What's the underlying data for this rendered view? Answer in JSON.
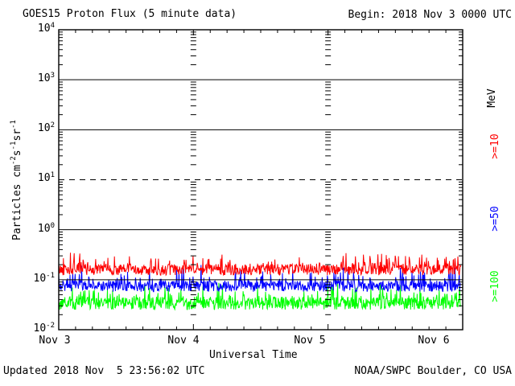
{
  "header": {
    "title": "GOES15 Proton Flux (5 minute data)",
    "begin_label": "Begin: 2018 Nov 3 0000 UTC"
  },
  "footer": {
    "updated": "Updated 2018 Nov  5 23:56:02 UTC",
    "source": "NOAA/SWPC Boulder, CO USA"
  },
  "axes": {
    "x_label": "Universal Time",
    "y_label_parts": [
      {
        "t": "Particles cm",
        "s": "-2"
      },
      {
        "t": "s",
        "s": "-1"
      },
      {
        "t": "sr",
        "s": "-1"
      }
    ],
    "y_ticks": [
      {
        "base": "10",
        "exp": "4"
      },
      {
        "base": "10",
        "exp": "3"
      },
      {
        "base": "10",
        "exp": "2"
      },
      {
        "base": "10",
        "exp": "1"
      },
      {
        "base": "10",
        "exp": "0"
      },
      {
        "base": "10",
        "exp": "-1"
      },
      {
        "base": "10",
        "exp": "-2"
      }
    ],
    "x_tick_labels": [
      "Nov 3",
      "Nov 4",
      "Nov 5",
      "Nov 6"
    ]
  },
  "legend": {
    "unit": "MeV",
    "entries": [
      {
        "label": ">=10",
        "color": "#ff0000"
      },
      {
        "label": ">=50",
        "color": "#0000ff"
      },
      {
        "label": ">=100",
        "color": "#00ff00"
      }
    ]
  },
  "colors": {
    "background": "#ffffff",
    "axis": "#000000",
    "flux_ge10": "#ff0000",
    "flux_ge50": "#0000ff",
    "flux_ge100": "#00ff00"
  },
  "chart_data": {
    "type": "line",
    "title": "GOES15 Proton Flux (5 minute data)",
    "xlabel": "Universal Time",
    "ylabel": "Particles cm^-2 s^-1 sr^-1",
    "x_start": "2018 Nov 3 0000 UTC",
    "x_end": "2018 Nov 6 0000 UTC",
    "x_tick_labels": [
      "Nov 3",
      "Nov 4",
      "Nov 5",
      "Nov 6"
    ],
    "y_scale": "log10",
    "ylim": [
      0.01,
      10000
    ],
    "y_decades": [
      4,
      3,
      2,
      1,
      0,
      -1,
      -2
    ],
    "solid_gridlines_log10": [
      3,
      2,
      0,
      -1
    ],
    "dashed_gridlines_log10": [
      1
    ],
    "minor_time_tick_hours": 3,
    "samples_per_series": 860,
    "sample_interval_minutes": 5,
    "series": [
      {
        "name": ">=10 MeV",
        "color": "#ff0000",
        "typical_flux": 0.17,
        "flux_min": 0.09,
        "flux_max": 0.35,
        "base_log10": -0.8,
        "noise_log10": 0.11,
        "spike_log10": 0.26,
        "spike_prob": 0.2,
        "seed": 42
      },
      {
        "name": ">=50 MeV",
        "color": "#0000ff",
        "typical_flux": 0.08,
        "flux_min": 0.045,
        "flux_max": 0.2,
        "base_log10": -1.13,
        "noise_log10": 0.11,
        "spike_log10": 0.34,
        "spike_prob": 0.16,
        "seed": 7
      },
      {
        "name": ">=100 MeV",
        "color": "#00ff00",
        "typical_flux": 0.035,
        "flux_min": 0.02,
        "flux_max": 0.1,
        "base_log10": -1.47,
        "noise_log10": 0.13,
        "spike_log10": 0.33,
        "spike_prob": 0.17,
        "seed": 99
      }
    ],
    "legend_position": "right",
    "grid": "partial-horizontal"
  }
}
